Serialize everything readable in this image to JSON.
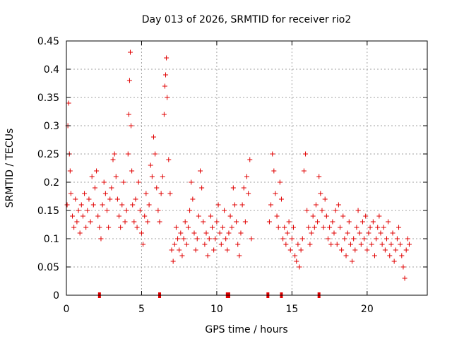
{
  "chart_data": {
    "type": "scatter",
    "title": "Day 013 of 2026, SRMTID for receiver rio2",
    "xlabel": "GPS time / hours",
    "ylabel": "SRMTID / TECUs",
    "xlim": [
      0,
      24
    ],
    "ylim": [
      0,
      0.45
    ],
    "xticks": [
      0,
      5,
      10,
      15,
      20
    ],
    "xtick_labels": [
      "0",
      "5",
      "10",
      "15",
      "20"
    ],
    "yticks": [
      0,
      0.05,
      0.1,
      0.15,
      0.2,
      0.25,
      0.3,
      0.35,
      0.4,
      0.45
    ],
    "ytick_labels": [
      "0",
      "0.05",
      "0.1",
      "0.15",
      "0.2",
      "0.25",
      "0.3",
      "0.35",
      "0.4",
      "0.45"
    ],
    "grid": true,
    "marker": "+",
    "color": "#e00000",
    "series": [
      {
        "name": "SRMTID",
        "points": [
          [
            0.05,
            0.16
          ],
          [
            0.1,
            0.3
          ],
          [
            0.15,
            0.34
          ],
          [
            0.2,
            0.25
          ],
          [
            0.25,
            0.22
          ],
          [
            0.3,
            0.18
          ],
          [
            0.4,
            0.14
          ],
          [
            0.5,
            0.12
          ],
          [
            0.6,
            0.17
          ],
          [
            0.7,
            0.13
          ],
          [
            0.8,
            0.15
          ],
          [
            0.9,
            0.11
          ],
          [
            1.0,
            0.16
          ],
          [
            1.1,
            0.14
          ],
          [
            1.2,
            0.18
          ],
          [
            1.3,
            0.12
          ],
          [
            1.4,
            0.15
          ],
          [
            1.5,
            0.17
          ],
          [
            1.6,
            0.13
          ],
          [
            1.7,
            0.21
          ],
          [
            1.8,
            0.16
          ],
          [
            1.9,
            0.19
          ],
          [
            2.0,
            0.22
          ],
          [
            2.1,
            0.14
          ],
          [
            2.2,
            0.12
          ],
          [
            2.3,
            0.1
          ],
          [
            2.4,
            0.16
          ],
          [
            2.5,
            0.2
          ],
          [
            2.6,
            0.18
          ],
          [
            2.7,
            0.15
          ],
          [
            2.8,
            0.12
          ],
          [
            2.9,
            0.17
          ],
          [
            3.0,
            0.19
          ],
          [
            3.1,
            0.24
          ],
          [
            3.2,
            0.25
          ],
          [
            3.3,
            0.21
          ],
          [
            3.4,
            0.17
          ],
          [
            3.5,
            0.14
          ],
          [
            3.6,
            0.12
          ],
          [
            3.7,
            0.16
          ],
          [
            3.8,
            0.2
          ],
          [
            3.9,
            0.13
          ],
          [
            4.0,
            0.15
          ],
          [
            4.1,
            0.25
          ],
          [
            4.15,
            0.32
          ],
          [
            4.2,
            0.38
          ],
          [
            4.25,
            0.43
          ],
          [
            4.3,
            0.3
          ],
          [
            4.35,
            0.22
          ],
          [
            4.4,
            0.16
          ],
          [
            4.5,
            0.13
          ],
          [
            4.6,
            0.17
          ],
          [
            4.7,
            0.12
          ],
          [
            4.8,
            0.2
          ],
          [
            4.9,
            0.15
          ],
          [
            5.0,
            0.11
          ],
          [
            5.1,
            0.09
          ],
          [
            5.2,
            0.14
          ],
          [
            5.3,
            0.18
          ],
          [
            5.4,
            0.13
          ],
          [
            5.5,
            0.16
          ],
          [
            5.6,
            0.23
          ],
          [
            5.7,
            0.21
          ],
          [
            5.8,
            0.28
          ],
          [
            5.9,
            0.25
          ],
          [
            6.0,
            0.19
          ],
          [
            6.1,
            0.15
          ],
          [
            6.2,
            0.13
          ],
          [
            6.3,
            0.18
          ],
          [
            6.4,
            0.21
          ],
          [
            6.5,
            0.32
          ],
          [
            6.55,
            0.37
          ],
          [
            6.6,
            0.39
          ],
          [
            6.65,
            0.42
          ],
          [
            6.7,
            0.35
          ],
          [
            6.8,
            0.24
          ],
          [
            6.9,
            0.18
          ],
          [
            7.0,
            0.08
          ],
          [
            7.1,
            0.06
          ],
          [
            7.2,
            0.09
          ],
          [
            7.3,
            0.12
          ],
          [
            7.4,
            0.1
          ],
          [
            7.5,
            0.08
          ],
          [
            7.6,
            0.11
          ],
          [
            7.7,
            0.07
          ],
          [
            7.8,
            0.1
          ],
          [
            7.9,
            0.13
          ],
          [
            8.0,
            0.09
          ],
          [
            8.1,
            0.12
          ],
          [
            8.2,
            0.15
          ],
          [
            8.3,
            0.2
          ],
          [
            8.4,
            0.17
          ],
          [
            8.5,
            0.11
          ],
          [
            8.6,
            0.08
          ],
          [
            8.7,
            0.1
          ],
          [
            8.8,
            0.14
          ],
          [
            8.9,
            0.22
          ],
          [
            9.0,
            0.19
          ],
          [
            9.1,
            0.13
          ],
          [
            9.2,
            0.09
          ],
          [
            9.3,
            0.11
          ],
          [
            9.4,
            0.07
          ],
          [
            9.5,
            0.1
          ],
          [
            9.6,
            0.14
          ],
          [
            9.7,
            0.12
          ],
          [
            9.8,
            0.08
          ],
          [
            9.9,
            0.1
          ],
          [
            10.0,
            0.13
          ],
          [
            10.1,
            0.16
          ],
          [
            10.2,
            0.11
          ],
          [
            10.3,
            0.09
          ],
          [
            10.4,
            0.12
          ],
          [
            10.5,
            0.15
          ],
          [
            10.6,
            0.1
          ],
          [
            10.7,
            0.08
          ],
          [
            10.8,
            0.11
          ],
          [
            10.9,
            0.14
          ],
          [
            11.0,
            0.12
          ],
          [
            11.1,
            0.19
          ],
          [
            11.2,
            0.16
          ],
          [
            11.3,
            0.13
          ],
          [
            11.4,
            0.09
          ],
          [
            11.5,
            0.07
          ],
          [
            11.6,
            0.11
          ],
          [
            11.7,
            0.16
          ],
          [
            11.8,
            0.19
          ],
          [
            11.9,
            0.13
          ],
          [
            12.0,
            0.21
          ],
          [
            12.1,
            0.18
          ],
          [
            12.2,
            0.24
          ],
          [
            12.3,
            0.1
          ],
          [
            13.5,
            0.13
          ],
          [
            13.6,
            0.16
          ],
          [
            13.7,
            0.25
          ],
          [
            13.8,
            0.22
          ],
          [
            13.9,
            0.18
          ],
          [
            14.0,
            0.14
          ],
          [
            14.1,
            0.12
          ],
          [
            14.2,
            0.2
          ],
          [
            14.3,
            0.17
          ],
          [
            14.4,
            0.1
          ],
          [
            14.5,
            0.12
          ],
          [
            14.6,
            0.09
          ],
          [
            14.7,
            0.11
          ],
          [
            14.8,
            0.13
          ],
          [
            14.9,
            0.08
          ],
          [
            15.0,
            0.1
          ],
          [
            15.1,
            0.12
          ],
          [
            15.2,
            0.07
          ],
          [
            15.3,
            0.06
          ],
          [
            15.4,
            0.09
          ],
          [
            15.5,
            0.05
          ],
          [
            15.6,
            0.08
          ],
          [
            15.7,
            0.1
          ],
          [
            15.8,
            0.22
          ],
          [
            15.9,
            0.25
          ],
          [
            16.0,
            0.15
          ],
          [
            16.1,
            0.12
          ],
          [
            16.2,
            0.09
          ],
          [
            16.3,
            0.11
          ],
          [
            16.4,
            0.14
          ],
          [
            16.5,
            0.12
          ],
          [
            16.6,
            0.16
          ],
          [
            16.7,
            0.13
          ],
          [
            16.8,
            0.21
          ],
          [
            16.9,
            0.18
          ],
          [
            17.0,
            0.15
          ],
          [
            17.1,
            0.12
          ],
          [
            17.2,
            0.17
          ],
          [
            17.3,
            0.14
          ],
          [
            17.4,
            0.1
          ],
          [
            17.5,
            0.12
          ],
          [
            17.6,
            0.09
          ],
          [
            17.7,
            0.13
          ],
          [
            17.8,
            0.11
          ],
          [
            17.9,
            0.15
          ],
          [
            18.0,
            0.09
          ],
          [
            18.1,
            0.16
          ],
          [
            18.2,
            0.12
          ],
          [
            18.3,
            0.08
          ],
          [
            18.4,
            0.14
          ],
          [
            18.5,
            0.1
          ],
          [
            18.6,
            0.07
          ],
          [
            18.7,
            0.11
          ],
          [
            18.8,
            0.13
          ],
          [
            18.9,
            0.09
          ],
          [
            19.0,
            0.06
          ],
          [
            19.1,
            0.1
          ],
          [
            19.2,
            0.08
          ],
          [
            19.3,
            0.12
          ],
          [
            19.4,
            0.15
          ],
          [
            19.5,
            0.11
          ],
          [
            19.6,
            0.09
          ],
          [
            19.7,
            0.13
          ],
          [
            19.8,
            0.1
          ],
          [
            19.9,
            0.14
          ],
          [
            20.0,
            0.08
          ],
          [
            20.1,
            0.11
          ],
          [
            20.2,
            0.12
          ],
          [
            20.3,
            0.09
          ],
          [
            20.4,
            0.13
          ],
          [
            20.5,
            0.07
          ],
          [
            20.6,
            0.1
          ],
          [
            20.7,
            0.12
          ],
          [
            20.8,
            0.14
          ],
          [
            20.9,
            0.11
          ],
          [
            21.0,
            0.09
          ],
          [
            21.1,
            0.12
          ],
          [
            21.2,
            0.08
          ],
          [
            21.3,
            0.1
          ],
          [
            21.4,
            0.13
          ],
          [
            21.5,
            0.07
          ],
          [
            21.6,
            0.09
          ],
          [
            21.7,
            0.11
          ],
          [
            21.8,
            0.06
          ],
          [
            21.9,
            0.08
          ],
          [
            22.0,
            0.1
          ],
          [
            22.1,
            0.12
          ],
          [
            22.2,
            0.09
          ],
          [
            22.3,
            0.07
          ],
          [
            22.4,
            0.05
          ],
          [
            22.5,
            0.03
          ],
          [
            22.6,
            0.08
          ],
          [
            22.7,
            0.1
          ],
          [
            22.8,
            0.09
          ]
        ]
      }
    ],
    "zero_markers_x": [
      2.2,
      6.2,
      10.7,
      10.8,
      13.4,
      14.3,
      16.8
    ]
  }
}
